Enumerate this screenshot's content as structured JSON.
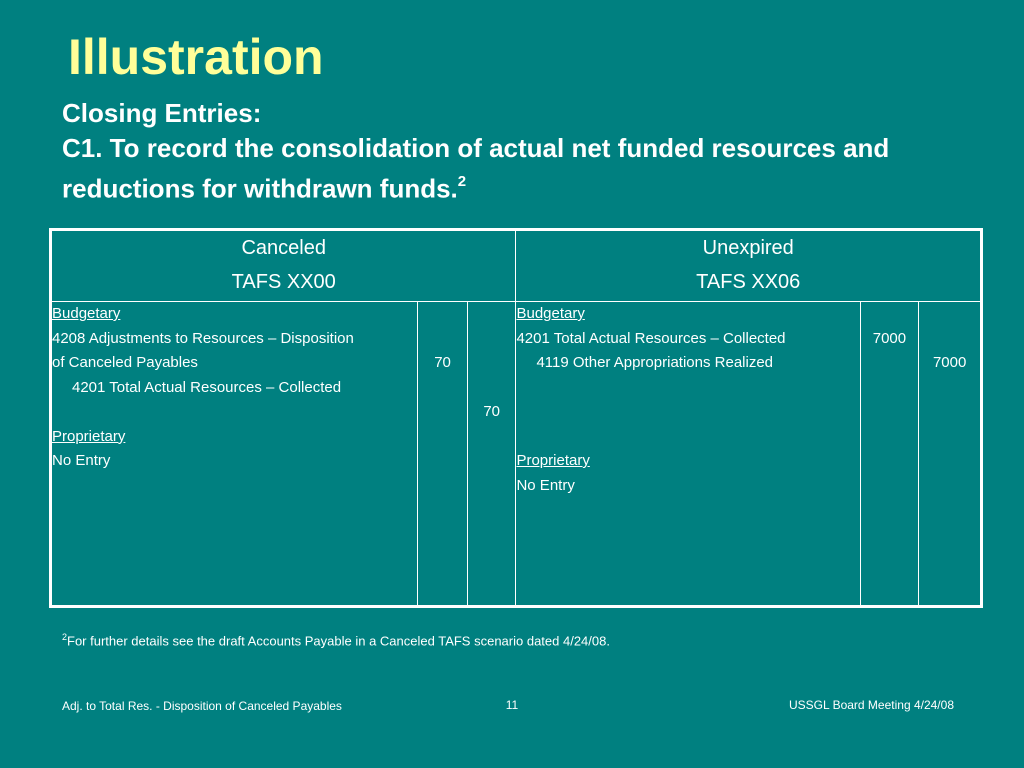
{
  "title": "Illustration",
  "subtitle": {
    "line1": "Closing Entries:",
    "line2": "C1. To record the consolidation of actual net funded resources and reductions for withdrawn funds.",
    "sup": "2"
  },
  "table": {
    "left_header": {
      "line1": "Canceled",
      "line2": "TAFS XX00"
    },
    "right_header": {
      "line1": "Unexpired",
      "line2": "TAFS XX06"
    },
    "left": {
      "budgetary_label": "Budgetary",
      "debit_account_l1": "4208 Adjustments to Resources – Disposition",
      "debit_account_l2": "of Canceled Payables",
      "credit_account": "4201 Total Actual Resources –  Collected",
      "proprietary_label": "Proprietary",
      "proprietary_entry": "No Entry",
      "debit_amount": "70",
      "credit_amount": "70"
    },
    "right": {
      "budgetary_label": "Budgetary",
      "debit_account": "4201 Total Actual Resources – Collected",
      "credit_account": "4119 Other Appropriations Realized",
      "proprietary_label": "Proprietary",
      "proprietary_entry": "No Entry",
      "debit_amount": "7000",
      "credit_amount": "7000"
    }
  },
  "footnote": {
    "sup": "2",
    "text": "For further details see the draft Accounts Payable in a Canceled TAFS scenario dated 4/24/08."
  },
  "footer": {
    "left": "Adj. to Total Res. - Disposition of Canceled Payables",
    "page_number": "11",
    "right": "USSGL Board Meeting 4/24/08"
  }
}
